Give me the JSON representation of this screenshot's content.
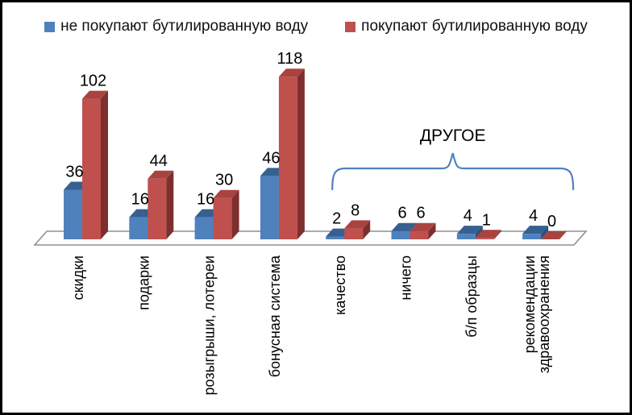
{
  "legend": {
    "items": [
      {
        "label": "не покупают бутилированную воду",
        "color": "#4f81bd"
      },
      {
        "label": "покупают бутилированную воду",
        "color": "#c0504d"
      }
    ]
  },
  "chart_data": {
    "type": "bar",
    "style": "3d-clustered-column",
    "title": "",
    "xlabel": "",
    "ylabel": "",
    "legend_position": "top",
    "gridlines": false,
    "categories": [
      "скидки",
      "подарки",
      "розыгрыши, лотереи",
      "бонусная система",
      "качество",
      "ничего",
      "б/п образцы",
      "рекомендации здравоохранения"
    ],
    "series": [
      {
        "name": "не покупают бутилированную воду",
        "color": "#4f81bd",
        "top_color": "#35608f",
        "side_color": "#2c5177",
        "values": [
          36,
          16,
          16,
          46,
          2,
          6,
          4,
          4
        ]
      },
      {
        "name": "покупают бутилированную воду",
        "color": "#c0504d",
        "top_color": "#a9433f",
        "side_color": "#7d2f2d",
        "values": [
          102,
          44,
          30,
          118,
          8,
          6,
          1,
          0
        ]
      }
    ],
    "value_labels_visible": true,
    "floor_color": "#8f8f8f",
    "annotation": {
      "label": "ДРУГОЕ",
      "start_index": 4,
      "end_index": 7,
      "brace_color": "#4f81bd"
    }
  }
}
